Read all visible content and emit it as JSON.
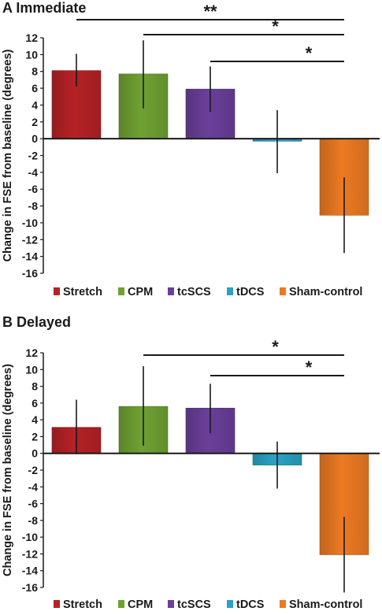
{
  "panels": [
    {
      "title": "A Immediate"
    },
    {
      "title": "B Delayed"
    }
  ],
  "chart_data": [
    {
      "type": "bar",
      "title": "A Immediate",
      "xlabel": "",
      "ylabel": "Change in FSE from baseline (degrees)",
      "ylim": [
        -16,
        12
      ],
      "yticks": [
        12,
        10,
        8,
        6,
        4,
        2,
        0,
        -2,
        -4,
        -6,
        -8,
        -10,
        -12,
        -14,
        -16
      ],
      "categories": [
        "Stretch",
        "CPM",
        "tcSCS",
        "tDCS",
        "Sham-control"
      ],
      "values": [
        8.1,
        7.7,
        5.9,
        -0.3,
        -9.1
      ],
      "error_bars": [
        [
          6.2,
          10.1
        ],
        [
          3.6,
          11.7
        ],
        [
          3.2,
          8.6
        ],
        [
          -4.1,
          3.4
        ],
        [
          -13.6,
          -4.6
        ]
      ],
      "colors": [
        "#b52226",
        "#6fa132",
        "#6a3f9a",
        "#2aa3c4",
        "#ec7a22"
      ],
      "significance": [
        {
          "from": "Stretch",
          "to": "Sham-control",
          "label": "**"
        },
        {
          "from": "CPM",
          "to": "Sham-control",
          "label": "*"
        },
        {
          "from": "tcSCS",
          "to": "Sham-control",
          "label": "*"
        }
      ],
      "legend": {
        "position": "bottom",
        "entries": [
          "Stretch",
          "CPM",
          "tcSCS",
          "tDCS",
          "Sham-control"
        ]
      },
      "grid": false
    },
    {
      "type": "bar",
      "title": "B Delayed",
      "xlabel": "",
      "ylabel": "Change in FSE from baseline (degrees)",
      "ylim": [
        -16,
        12
      ],
      "yticks": [
        12,
        10,
        8,
        6,
        4,
        2,
        0,
        -2,
        -4,
        -6,
        -8,
        -10,
        -12,
        -14,
        -16
      ],
      "categories": [
        "Stretch",
        "CPM",
        "tcSCS",
        "tDCS",
        "Sham-control"
      ],
      "values": [
        3.1,
        5.6,
        5.4,
        -1.4,
        -12.1
      ],
      "error_bars": [
        [
          -0.1,
          6.4
        ],
        [
          0.9,
          10.4
        ],
        [
          2.4,
          8.3
        ],
        [
          -4.2,
          1.4
        ],
        [
          -16.6,
          -7.6
        ]
      ],
      "colors": [
        "#b52226",
        "#6fa132",
        "#6a3f9a",
        "#2aa3c4",
        "#ec7a22"
      ],
      "significance": [
        {
          "from": "CPM",
          "to": "Sham-control",
          "label": "*"
        },
        {
          "from": "tcSCS",
          "to": "Sham-control",
          "label": "*"
        }
      ],
      "legend": {
        "position": "bottom",
        "entries": [
          "Stretch",
          "CPM",
          "tcSCS",
          "tDCS",
          "Sham-control"
        ]
      },
      "grid": false
    }
  ]
}
